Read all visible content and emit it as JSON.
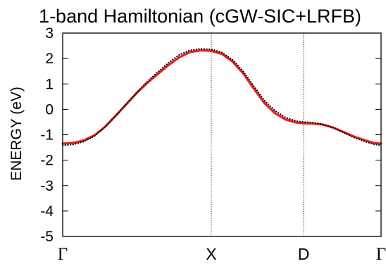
{
  "chart_data": {
    "type": "line",
    "title": "1-band Hamiltonian (cGW-SIC+LRFB)",
    "xlabel": "",
    "ylabel": "ENERGY (eV)",
    "ylim": [
      -5,
      3
    ],
    "yticks": [
      3,
      2,
      1,
      0,
      -1,
      -2,
      -3,
      -4,
      -5
    ],
    "grid": false,
    "xlim": [
      0,
      3
    ],
    "kpoints": [
      {
        "label": "Γ",
        "x": 0
      },
      {
        "label": "X",
        "x": 1.4
      },
      {
        "label": "D",
        "x": 2.27
      },
      {
        "label": "Γ",
        "x": 3
      }
    ],
    "series": [
      {
        "style": "solid",
        "color": "#e8211f",
        "x": [
          0,
          0.1,
          0.2,
          0.3,
          0.4,
          0.5,
          0.6,
          0.7,
          0.8,
          0.9,
          1.0,
          1.1,
          1.2,
          1.3,
          1.4,
          1.5,
          1.6,
          1.7,
          1.8,
          1.9,
          2.0,
          2.1,
          2.2,
          2.27,
          2.35,
          2.45,
          2.55,
          2.65,
          2.75,
          2.85,
          2.93,
          3.0
        ],
        "y": [
          -1.35,
          -1.32,
          -1.22,
          -1.02,
          -0.68,
          -0.25,
          0.2,
          0.65,
          1.05,
          1.4,
          1.75,
          2.05,
          2.25,
          2.32,
          2.3,
          2.18,
          1.88,
          1.42,
          0.82,
          0.25,
          -0.15,
          -0.4,
          -0.52,
          -0.55,
          -0.56,
          -0.6,
          -0.72,
          -0.9,
          -1.08,
          -1.22,
          -1.32,
          -1.35
        ]
      },
      {
        "style": "dotted",
        "color": "#000000",
        "x": [
          0,
          0.1,
          0.2,
          0.3,
          0.4,
          0.5,
          0.6,
          0.7,
          0.8,
          0.9,
          1.0,
          1.1,
          1.2,
          1.3,
          1.4,
          1.5,
          1.6,
          1.7,
          1.8,
          1.9,
          2.0,
          2.1,
          2.2,
          2.27,
          2.35,
          2.45,
          2.55,
          2.65,
          2.75,
          2.85,
          2.93,
          3.0
        ],
        "y": [
          -1.42,
          -1.38,
          -1.27,
          -1.05,
          -0.7,
          -0.25,
          0.22,
          0.68,
          1.1,
          1.48,
          1.84,
          2.15,
          2.32,
          2.38,
          2.36,
          2.24,
          1.95,
          1.5,
          0.92,
          0.35,
          -0.05,
          -0.32,
          -0.46,
          -0.5,
          -0.52,
          -0.58,
          -0.72,
          -0.92,
          -1.12,
          -1.27,
          -1.37,
          -1.42
        ]
      }
    ]
  }
}
